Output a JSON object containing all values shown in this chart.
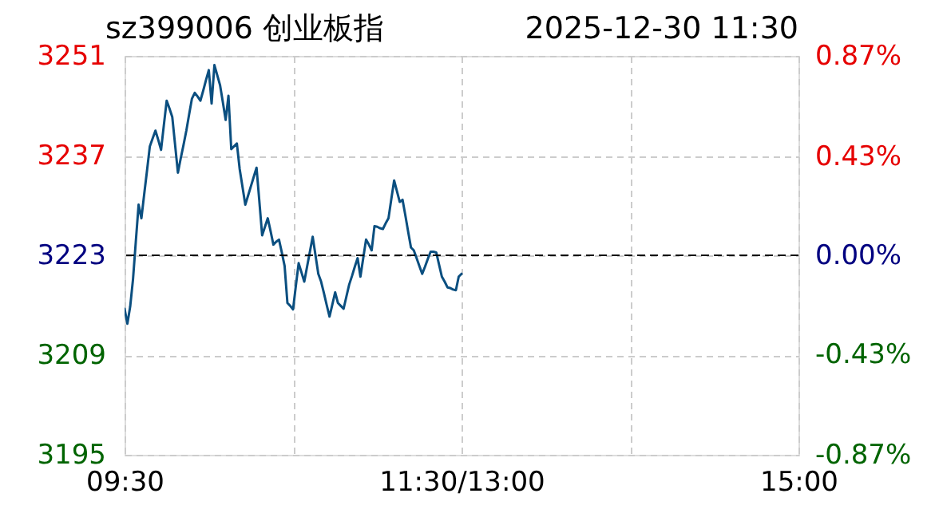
{
  "chart_data": {
    "type": "line",
    "title": "sz399006 创业板指",
    "annotations": [
      "2025-12-30  11:30"
    ],
    "categories": [
      "09:30",
      null,
      null,
      null,
      null,
      null,
      null,
      null,
      null,
      null,
      null,
      null,
      null,
      null,
      null,
      null,
      null,
      null,
      null,
      null,
      null,
      null,
      null,
      null,
      null,
      null,
      null,
      null,
      null,
      null,
      null,
      null,
      null,
      null,
      null,
      null,
      null,
      null,
      null,
      null,
      null,
      null,
      null,
      null,
      null,
      null,
      null,
      null,
      null,
      null,
      null,
      null,
      null,
      null,
      null,
      null,
      null,
      null,
      null,
      null,
      null,
      null,
      null,
      null,
      null,
      null,
      null,
      null,
      null,
      null,
      null,
      null,
      null,
      null,
      null,
      null,
      null,
      null,
      null,
      null,
      null,
      null,
      null,
      null,
      null,
      null,
      null,
      null,
      null,
      null,
      null,
      null,
      null,
      null,
      null,
      null,
      null,
      null,
      null,
      null,
      null,
      null,
      null,
      null,
      null,
      null,
      null,
      null,
      null,
      null,
      null,
      null,
      null,
      null,
      null,
      null,
      null,
      null,
      null,
      null,
      "11:30/13:00",
      null,
      null,
      null,
      null,
      null,
      null,
      null,
      null,
      null,
      null,
      null,
      null,
      null,
      null,
      null,
      null,
      null,
      null,
      null,
      null,
      null,
      null,
      null,
      null,
      null,
      null,
      null,
      null,
      null,
      null,
      null,
      null,
      null,
      null,
      null,
      null,
      null,
      null,
      null,
      null,
      null,
      null,
      null,
      null,
      null,
      null,
      null,
      null,
      null,
      null,
      null,
      null,
      null,
      null,
      null,
      null,
      null,
      null,
      null,
      null,
      null,
      null,
      null,
      null,
      null,
      null,
      null,
      null,
      null,
      null,
      null,
      null,
      null,
      null,
      null,
      null,
      null,
      null,
      null,
      null,
      null,
      null,
      null,
      null,
      null,
      null,
      null,
      null,
      null,
      null,
      null,
      null,
      null,
      null,
      null,
      null,
      null,
      null,
      null,
      null,
      null,
      null,
      null,
      null,
      null,
      null,
      null,
      null,
      null,
      null,
      null,
      null,
      null,
      null,
      null,
      null,
      null,
      null,
      null,
      "15:00"
    ],
    "series": [
      {
        "color": "#0b4f80",
        "values": [
          3215.5,
          3213.4,
          3215.8,
          3219.6,
          3224.9,
          3230.1,
          3228.2,
          3231.6,
          3234.9,
          3238.3,
          3239.4,
          3240.5,
          3239.2,
          3237.8,
          3241.3,
          3244.7,
          3243.6,
          3242.4,
          3238.5,
          3234.6,
          3236.6,
          3238.5,
          3240.5,
          3242.8,
          3245.0,
          3245.8,
          3245.3,
          3244.7,
          3246.1,
          3247.6,
          3249.0,
          3244.3,
          3249.7,
          3248.3,
          3246.9,
          3244.5,
          3242.0,
          3245.4,
          3237.9,
          3238.3,
          3238.7,
          3235.1,
          3232.6,
          3230.1,
          3231.4,
          3232.7,
          3234.0,
          3235.3,
          3230.6,
          3225.8,
          3227.0,
          3228.2,
          3226.4,
          3224.5,
          3224.9,
          3225.2,
          3223.4,
          3221.5,
          3216.3,
          3215.9,
          3215.4,
          3218.7,
          3221.9,
          3220.6,
          3219.3,
          3221.4,
          3223.5,
          3225.6,
          3223.0,
          3220.4,
          3219.3,
          3217.7,
          3216.0,
          3214.4,
          3216.1,
          3217.8,
          3216.3,
          3215.9,
          3215.5,
          3217.2,
          3218.9,
          3220.1,
          3221.4,
          3222.6,
          3220.0,
          3222.6,
          3225.2,
          3224.5,
          3223.7,
          3227.1,
          3227.0,
          3226.8,
          3226.7,
          3227.5,
          3228.2,
          3230.9,
          3233.5,
          3232.0,
          3230.5,
          3230.8,
          3228.6,
          3226.3,
          3224.1,
          3223.7,
          3222.6,
          3221.5,
          3220.4,
          3221.4,
          3222.5,
          3223.5,
          3223.5,
          3223.4,
          3221.7,
          3220.0,
          3219.3,
          3218.5,
          3218.4,
          3218.2,
          3218.1,
          3220.0,
          3220.4,
          null,
          null,
          null,
          null,
          null,
          null,
          null,
          null,
          null,
          null,
          null,
          null,
          null,
          null,
          null,
          null,
          null,
          null,
          null,
          null,
          null,
          null,
          null,
          null,
          null,
          null,
          null,
          null,
          null,
          null,
          null,
          null,
          null,
          null,
          null,
          null,
          null,
          null,
          null,
          null,
          null,
          null,
          null,
          null,
          null,
          null,
          null,
          null,
          null,
          null,
          null,
          null,
          null,
          null,
          null,
          null,
          null,
          null,
          null,
          null,
          null,
          null,
          null,
          null,
          null,
          null,
          null,
          null,
          null,
          null,
          null,
          null,
          null,
          null,
          null,
          null,
          null,
          null,
          null,
          null,
          null,
          null,
          null,
          null,
          null,
          null,
          null,
          null,
          null,
          null,
          null,
          null,
          null,
          null,
          null,
          null,
          null,
          null,
          null,
          null,
          null,
          null,
          null,
          null,
          null,
          null,
          null,
          null,
          null,
          null,
          null,
          null,
          null,
          null,
          null,
          null,
          null,
          null,
          null,
          null
        ]
      }
    ],
    "ylim": [
      3195,
      3251
    ],
    "yticks": [
      3195,
      3209,
      3223,
      3237,
      3251
    ],
    "y2lim": [
      -0.87,
      0.87
    ],
    "y2ticks": [
      {
        "value": -0.87,
        "label": "-0.87%"
      },
      {
        "value": -0.43,
        "label": "-0.43%"
      },
      {
        "value": 0,
        "label": "0.00%"
      },
      {
        "value": 0.43,
        "label": "0.43%"
      },
      {
        "value": 0.87,
        "label": "0.87%"
      }
    ],
    "ref_lines": [
      {
        "axis": "y2",
        "value": 0,
        "color": "#000000",
        "line_style": "dashed"
      }
    ],
    "grid": true,
    "marker": "none",
    "line_style": "solid"
  }
}
